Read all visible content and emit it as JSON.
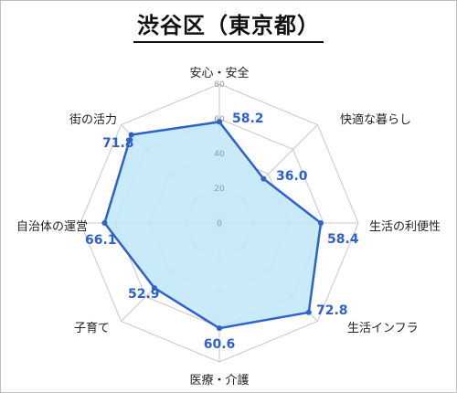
{
  "title": "渋谷区（東京都）",
  "chart_data": {
    "type": "radar",
    "title": "渋谷区（東京都）",
    "categories": [
      "安心・安全",
      "快適な暮らし",
      "生活の利便性",
      "生活インフラ",
      "医療・介護",
      "子育て",
      "自治体の運営",
      "街の活力"
    ],
    "values": [
      58.2,
      36.0,
      58.4,
      72.8,
      60.6,
      52.9,
      66.1,
      71.8
    ],
    "value_labels": [
      "58.2",
      "36.0",
      "58.4",
      "72.8",
      "60.6",
      "52.9",
      "66.1",
      "71.8"
    ],
    "rlim": [
      0,
      80
    ],
    "ticks": [
      0,
      20,
      40,
      60,
      80
    ],
    "grid": true,
    "colors": {
      "line": "#2f62c8",
      "fill": "#bfe6f8",
      "grid": "#c8c8c8"
    }
  }
}
